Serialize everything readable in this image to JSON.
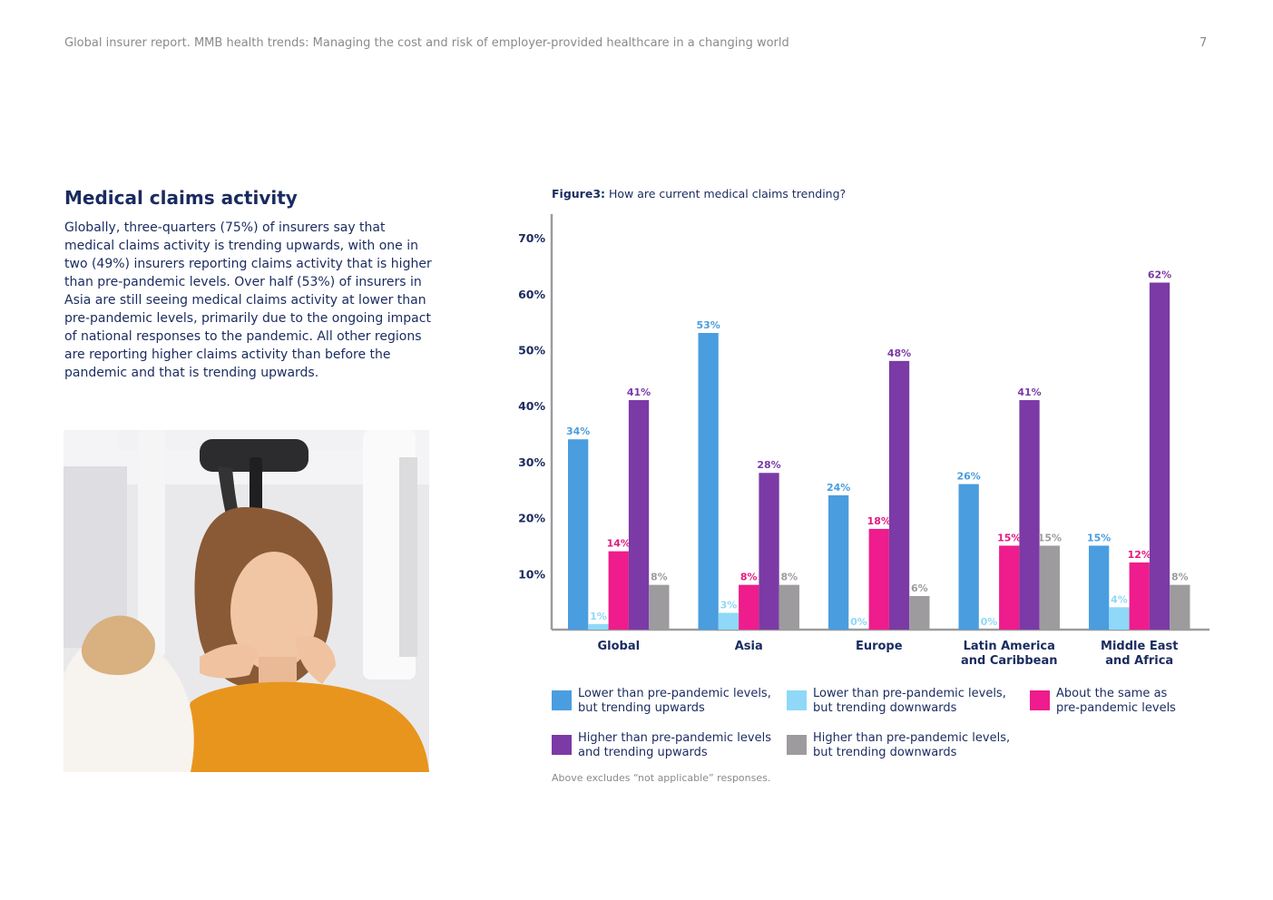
{
  "header": {
    "title": "Global insurer report. MMB health trends: Managing the cost and risk of employer-provided healthcare in a changing world",
    "page_number": "7"
  },
  "article": {
    "heading": "Medical claims activity",
    "body": "Globally, three-quarters (75%) of insurers say that medical claims activity is trending upwards, with one in two (49%) insurers reporting claims activity that is higher than pre-pandemic levels. Over half (53%) of insurers in Asia are still seeing medical claims activity at lower than pre-pandemic levels, primarily due to the ongoing impact of national responses to the pandemic. All other regions are reporting higher claims activity than before the pandemic and that is trending upwards."
  },
  "figure": {
    "label": "Figure3:",
    "question": "How are current medical claims trending?",
    "footnote": "Above excludes “not applicable” responses."
  },
  "chart_data": {
    "type": "bar",
    "title": "How are current medical claims trending?",
    "categories": [
      "Global",
      "Asia",
      "Europe",
      "Latin America\nand Caribbean",
      "Middle East\nand Africa"
    ],
    "y_ticks": [
      "10%",
      "20%",
      "30%",
      "40%",
      "50%",
      "60%",
      "70%"
    ],
    "ylim": [
      0,
      70
    ],
    "grid": false,
    "legend_position": "bottom",
    "series": [
      {
        "name": "Lower than pre-pandemic levels,\nbut trending upwards",
        "color": "#4a9ddf",
        "label_color": "#4a9ddf",
        "values": [
          34,
          53,
          24,
          26,
          15
        ]
      },
      {
        "name": "Lower than pre-pandemic levels,\nbut trending downwards",
        "color": "#8fd8f7",
        "label_color": "#8fd8f7",
        "values": [
          1,
          3,
          0,
          0,
          4
        ]
      },
      {
        "name": "About the same as\npre-pandemic levels",
        "color": "#ee1c8c",
        "label_color": "#e5187f",
        "values": [
          14,
          8,
          18,
          15,
          12
        ]
      },
      {
        "name": "Higher than pre-pandemic levels\nand trending upwards",
        "color": "#7b3aa5",
        "label_color": "#7b3aa5",
        "values": [
          41,
          28,
          48,
          41,
          62
        ]
      },
      {
        "name": "Higher than pre-pandemic levels,\nbut trending downwards",
        "color": "#9d9b9e",
        "label_color": "#9d9b9e",
        "values": [
          8,
          8,
          6,
          15,
          8
        ]
      }
    ]
  }
}
